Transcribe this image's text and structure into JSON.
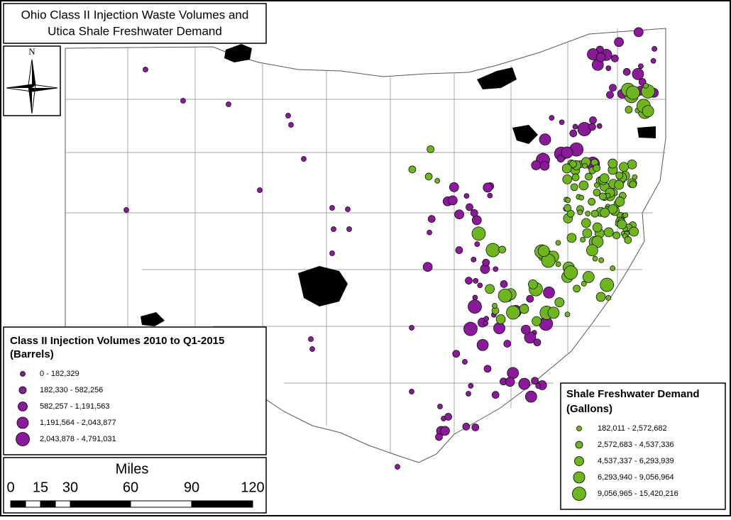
{
  "header": {
    "title_lines": [
      "Ohio Class II Injection Waste Volumes and",
      "Utica Shale Freshwater Demand"
    ]
  },
  "north_arrow": {
    "label": "N"
  },
  "injection_legend": {
    "title_lines": [
      "Class II Injection Volumes 2010 to Q1-2015",
      "(Barrels)"
    ],
    "classes": [
      "0 - 182,329",
      "182,330 - 582,256",
      "582,257 - 1,191,563",
      "1,191,564 - 2,043,877",
      "2,043,878 - 4,791,031"
    ]
  },
  "freshwater_legend": {
    "title_lines": [
      "Shale Freshwater Demand",
      "(Gallons)"
    ],
    "classes": [
      "182,011 - 2,572,682",
      "2,572,683 - 4,537,336",
      "4,537,337 - 6,293,939",
      "6,293,940 - 9,056,964",
      "9,056,965 - 15,420,216"
    ]
  },
  "scale_bar": {
    "title": "Miles",
    "labels": [
      "0",
      "15",
      "30",
      "60",
      "90",
      "120"
    ]
  }
}
